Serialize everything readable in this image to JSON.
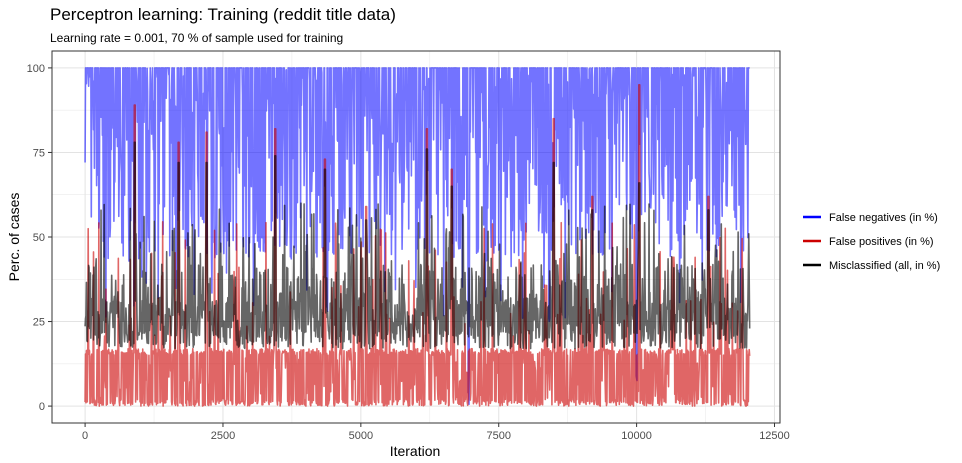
{
  "chart_data": {
    "type": "line",
    "title": "Perceptron learning: Training (reddit title data)",
    "subtitle": "Learning rate = 0.001, 70 % of sample used for training",
    "xlabel": "Iteration",
    "ylabel": "Perc. of cases",
    "xlim": [
      -600,
      12600
    ],
    "ylim": [
      -5,
      105
    ],
    "x_ticks": [
      0,
      2500,
      5000,
      7500,
      10000,
      12500
    ],
    "x_tick_labels": [
      "0",
      "2500",
      "5000",
      "7500",
      "10000",
      "12500"
    ],
    "y_ticks": [
      0,
      25,
      50,
      75,
      100
    ],
    "y_tick_labels": [
      "0",
      "25",
      "50",
      "75",
      "100"
    ],
    "grid": true,
    "legend_position": "right",
    "x_range": [
      0,
      12050
    ],
    "series": [
      {
        "name": "False negatives (in %)",
        "color": "#0000ff",
        "typical_low": 44,
        "typical_high": 100,
        "peak_value": 100,
        "floor_value": 0,
        "deep_drop_iterations": [
          6950,
          10000
        ],
        "deep_drop_value": 0,
        "overall_behavior": "oscillates rapidly between roughly 45 and 100"
      },
      {
        "name": "False positives (in %)",
        "color": "#cc0000",
        "typical_low": 0,
        "typical_high": 17,
        "floor_value": 0,
        "spike_iterations": [
          900,
          1700,
          2200,
          3450,
          4350,
          5100,
          6200,
          6650,
          8500,
          9200,
          10050,
          11300
        ],
        "spike_values": [
          89,
          78,
          81,
          82,
          73,
          59,
          82,
          70,
          85,
          62,
          95,
          62
        ],
        "overall_behavior": "oscillates between 0 and about 17 with occasional spikes"
      },
      {
        "name": "Misclassified (all, in %)",
        "color": "#000000",
        "typical_low": 17,
        "typical_high": 42,
        "floor_value": 17,
        "spike_iterations": [
          900,
          1700,
          2200,
          3450,
          4350,
          5100,
          6200,
          6650,
          8500,
          9200,
          10050,
          11300
        ],
        "spike_values": [
          78,
          72,
          72,
          74,
          70,
          55,
          76,
          65,
          72,
          58,
          66,
          58
        ],
        "overall_behavior": "oscillates between about 17 and 42 with spikes up to about 75"
      }
    ]
  }
}
